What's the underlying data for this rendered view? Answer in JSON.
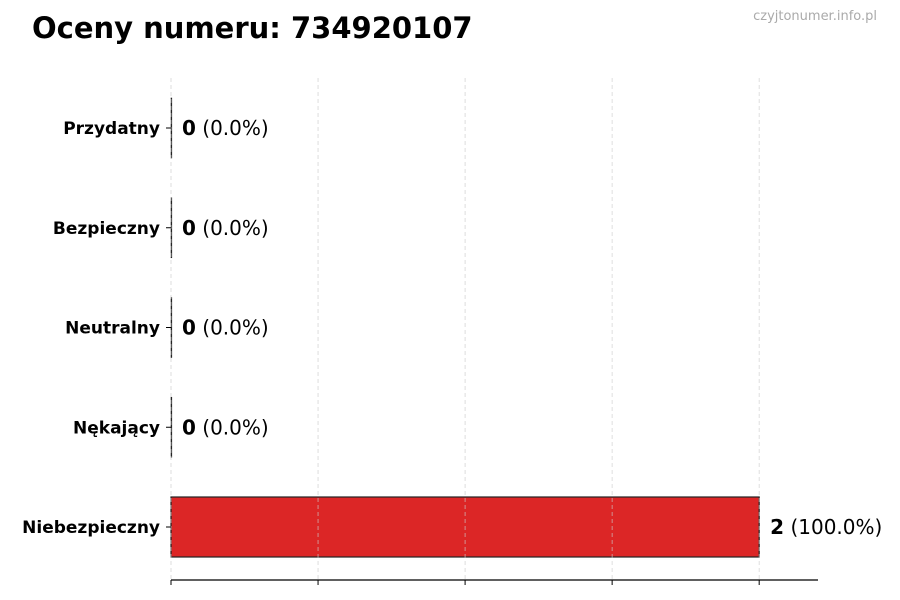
{
  "chart_data": {
    "type": "bar",
    "orientation": "horizontal",
    "title": "Oceny numeru: 734920107",
    "watermark": "czyjtonumer.info.pl",
    "categories": [
      "Przydatny",
      "Bezpieczny",
      "Neutralny",
      "Nękający",
      "Niebezpieczny"
    ],
    "values": [
      0,
      0,
      0,
      0,
      2
    ],
    "percent_labels": [
      "(0.0%)",
      "(0.0%)",
      "(0.0%)",
      "(0.0%)",
      "(100.0%)"
    ],
    "colors": [
      "#22c55e",
      "#3b82f6",
      "#9ca3af",
      "#f97316",
      "#dc2626"
    ],
    "xlim": [
      0,
      2.2
    ],
    "x_gridlines": [
      0,
      0.5,
      1,
      1.5,
      2
    ],
    "x_tick_labels_shown": false,
    "grid": "x-dashed",
    "xlabel": "",
    "ylabel": ""
  }
}
